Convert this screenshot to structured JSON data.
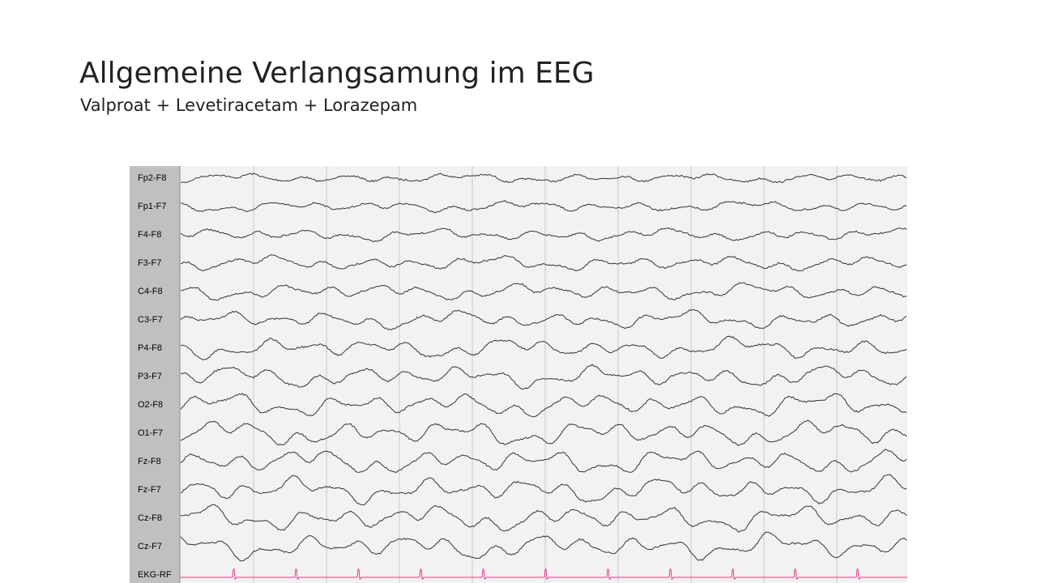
{
  "header": {
    "title": "Allgemeine Verlangsamung im EEG",
    "subtitle": "Valproat + Levetiracetam + Lorazepam"
  },
  "eeg": {
    "channels": [
      "Fp2-F8",
      "Fp1-F7",
      "F4-F8",
      "F3-F7",
      "C4-F8",
      "C3-F7",
      "P4-F8",
      "P3-F7",
      "O2-F8",
      "O1-F7",
      "Fz-F8",
      "Fz-F7",
      "Cz-F8",
      "Cz-F7",
      "EKG-RF"
    ]
  }
}
